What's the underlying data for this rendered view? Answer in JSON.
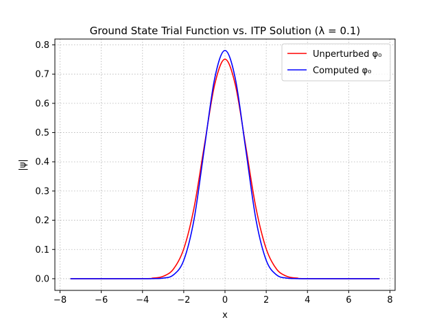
{
  "chart_data": {
    "type": "line",
    "title": "Ground State Trial Function vs. ITP Solution (λ = 0.1)",
    "xlabel": "x",
    "ylabel": "|ψ|",
    "xlim": [
      -8.25,
      8.25
    ],
    "ylim": [
      -0.04,
      0.82
    ],
    "grid": true,
    "legend_position": "top-right",
    "x_ticks": [
      {
        "value": -8,
        "label": "−8"
      },
      {
        "value": -6,
        "label": "−6"
      },
      {
        "value": -4,
        "label": "−4"
      },
      {
        "value": -2,
        "label": "−2"
      },
      {
        "value": 0,
        "label": "0"
      },
      {
        "value": 2,
        "label": "2"
      },
      {
        "value": 4,
        "label": "4"
      },
      {
        "value": 6,
        "label": "6"
      },
      {
        "value": 8,
        "label": "8"
      }
    ],
    "y_ticks": [
      {
        "value": 0.0,
        "label": "0.0"
      },
      {
        "value": 0.1,
        "label": "0.1"
      },
      {
        "value": 0.2,
        "label": "0.2"
      },
      {
        "value": 0.3,
        "label": "0.3"
      },
      {
        "value": 0.4,
        "label": "0.4"
      },
      {
        "value": 0.5,
        "label": "0.5"
      },
      {
        "value": 0.6,
        "label": "0.6"
      },
      {
        "value": 0.7,
        "label": "0.7"
      },
      {
        "value": 0.8,
        "label": "0.8"
      }
    ],
    "series": [
      {
        "name": "Unperturbed φ₀",
        "color": "#ff0000",
        "x": [
          -7.5,
          -4.0,
          -3.5,
          -3.0,
          -2.5,
          -2.0,
          -1.5,
          -1.0,
          -0.5,
          0.0,
          0.5,
          1.0,
          1.5,
          2.0,
          2.5,
          3.0,
          3.5,
          4.0,
          7.5
        ],
        "y": [
          0.0,
          0.0003,
          0.002,
          0.008,
          0.033,
          0.102,
          0.243,
          0.456,
          0.664,
          0.751,
          0.664,
          0.456,
          0.243,
          0.102,
          0.033,
          0.008,
          0.002,
          0.0003,
          0.0
        ]
      },
      {
        "name": "Computed φ₀",
        "color": "#0000ff",
        "x": [
          -7.5,
          -4.0,
          -3.5,
          -3.0,
          -2.5,
          -2.0,
          -1.5,
          -1.0,
          -0.5,
          0.0,
          0.5,
          1.0,
          1.5,
          2.0,
          2.5,
          3.0,
          3.5,
          4.0,
          7.5
        ],
        "y": [
          0.0,
          0.0,
          0.0003,
          0.002,
          0.013,
          0.063,
          0.203,
          0.446,
          0.685,
          0.781,
          0.685,
          0.446,
          0.203,
          0.063,
          0.013,
          0.002,
          0.0003,
          0.0,
          0.0
        ]
      }
    ]
  }
}
